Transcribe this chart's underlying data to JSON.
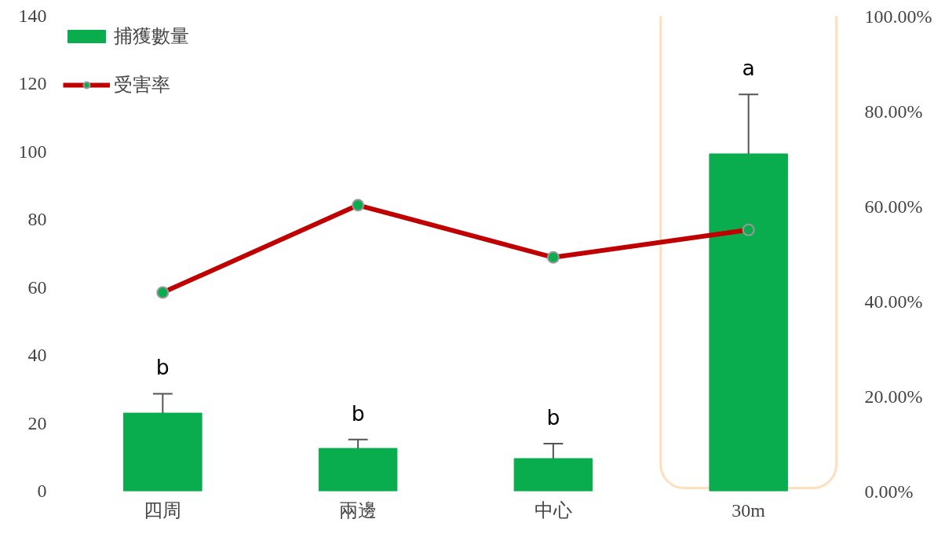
{
  "chart_data": {
    "type": "bar",
    "categories": [
      "四周",
      "兩邊",
      "中心",
      "30m"
    ],
    "series": [
      {
        "name": "捕獲數量",
        "color": "#0aad4d",
        "values": [
          23,
          12.6,
          9.6,
          99.4
        ],
        "errors": [
          [
            23,
            28.7
          ],
          [
            12.6,
            15.2
          ],
          [
            9.6,
            14.0
          ],
          [
            99.4,
            116.9
          ]
        ]
      },
      {
        "name": "受害率",
        "type": "line",
        "axis": "y2",
        "color": "#c00000",
        "values": [
          41.8,
          60.2,
          49.2,
          55.0
        ],
        "marker": "circle"
      }
    ],
    "ylim": [
      0,
      140
    ],
    "yticks": [
      0,
      20,
      40,
      60,
      80,
      100,
      120,
      140
    ],
    "y2lim": [
      0,
      100
    ],
    "y2ticks": [
      {
        "value": 0,
        "label": "0.00%"
      },
      {
        "value": 20,
        "label": "20.00%"
      },
      {
        "value": 40,
        "label": "40.00%"
      },
      {
        "value": 60,
        "label": "60.00%"
      },
      {
        "value": 80,
        "label": "80.00%"
      },
      {
        "value": 100,
        "label": "100.00%"
      }
    ],
    "annotations": [
      "b",
      "b",
      "b",
      "a"
    ],
    "grid": false,
    "legend": "top left"
  }
}
